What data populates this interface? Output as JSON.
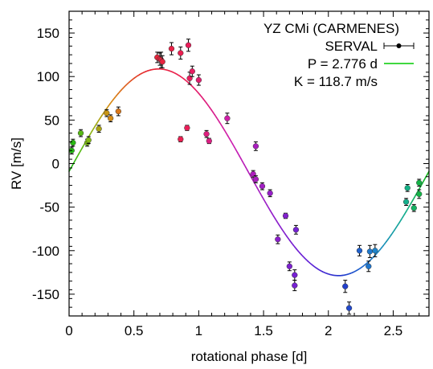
{
  "chart_data": {
    "type": "scatter",
    "title": "YZ CMi (CARMENES)",
    "xlabel": "rotational phase [d]",
    "ylabel": "RV [m/s]",
    "xlim": [
      0,
      2.776
    ],
    "ylim": [
      -175,
      175
    ],
    "xticks": [
      "0",
      "0.5",
      "1",
      "1.5",
      "2",
      "2.5"
    ],
    "yticks": [
      "-150",
      "-100",
      "-50",
      "0",
      "50",
      "100",
      "150"
    ],
    "grid": false,
    "legend_position": "top-right",
    "legend": [
      {
        "label": "SERVAL",
        "marker": "errorbar-dot",
        "color": "#000000"
      },
      {
        "label": "P = 2.776 d",
        "marker": "line",
        "color": "#00cc00"
      },
      {
        "label": "K = 118.7 m/s",
        "marker": "none"
      }
    ],
    "model": {
      "period": 2.776,
      "amplitude": 118.7,
      "offset": -10,
      "phase_of_max": 0.69
    },
    "points": [
      {
        "x": 0.02,
        "y": 15,
        "err": 4
      },
      {
        "x": 0.03,
        "y": 24,
        "err": 4
      },
      {
        "x": 0.09,
        "y": 35,
        "err": 4
      },
      {
        "x": 0.14,
        "y": 24,
        "err": 4
      },
      {
        "x": 0.15,
        "y": 27,
        "err": 4
      },
      {
        "x": 0.23,
        "y": 40,
        "err": 4
      },
      {
        "x": 0.29,
        "y": 58,
        "err": 4
      },
      {
        "x": 0.32,
        "y": 52,
        "err": 4
      },
      {
        "x": 0.38,
        "y": 60,
        "err": 5
      },
      {
        "x": 0.68,
        "y": 122,
        "err": 6
      },
      {
        "x": 0.7,
        "y": 120,
        "err": 7
      },
      {
        "x": 0.71,
        "y": 119,
        "err": 9
      },
      {
        "x": 0.72,
        "y": 117,
        "err": 7
      },
      {
        "x": 0.79,
        "y": 132,
        "err": 7
      },
      {
        "x": 0.86,
        "y": 28,
        "err": 3
      },
      {
        "x": 0.86,
        "y": 127,
        "err": 7
      },
      {
        "x": 0.91,
        "y": 41,
        "err": 3
      },
      {
        "x": 0.92,
        "y": 136,
        "err": 7
      },
      {
        "x": 0.93,
        "y": 98,
        "err": 7
      },
      {
        "x": 0.95,
        "y": 106,
        "err": 6
      },
      {
        "x": 1.0,
        "y": 96,
        "err": 6
      },
      {
        "x": 1.06,
        "y": 34,
        "err": 4
      },
      {
        "x": 1.08,
        "y": 26,
        "err": 3
      },
      {
        "x": 1.22,
        "y": 52,
        "err": 6
      },
      {
        "x": 1.42,
        "y": -12,
        "err": 4
      },
      {
        "x": 1.44,
        "y": 20,
        "err": 5
      },
      {
        "x": 1.44,
        "y": -18,
        "err": 4
      },
      {
        "x": 1.49,
        "y": -26,
        "err": 4
      },
      {
        "x": 1.55,
        "y": -34,
        "err": 4
      },
      {
        "x": 1.61,
        "y": -87,
        "err": 5
      },
      {
        "x": 1.67,
        "y": -60,
        "err": 3
      },
      {
        "x": 1.7,
        "y": -118,
        "err": 5
      },
      {
        "x": 1.74,
        "y": -128,
        "err": 6
      },
      {
        "x": 1.74,
        "y": -140,
        "err": 6
      },
      {
        "x": 1.75,
        "y": -76,
        "err": 5
      },
      {
        "x": 2.13,
        "y": -141,
        "err": 7
      },
      {
        "x": 2.16,
        "y": -166,
        "err": 7
      },
      {
        "x": 2.24,
        "y": -100,
        "err": 6
      },
      {
        "x": 2.31,
        "y": -118,
        "err": 6
      },
      {
        "x": 2.32,
        "y": -101,
        "err": 7
      },
      {
        "x": 2.36,
        "y": -100,
        "err": 7
      },
      {
        "x": 2.6,
        "y": -44,
        "err": 4
      },
      {
        "x": 2.61,
        "y": -28,
        "err": 4
      },
      {
        "x": 2.66,
        "y": -51,
        "err": 4
      },
      {
        "x": 2.7,
        "y": -22,
        "err": 4
      },
      {
        "x": 2.7,
        "y": -35,
        "err": 5
      }
    ]
  }
}
